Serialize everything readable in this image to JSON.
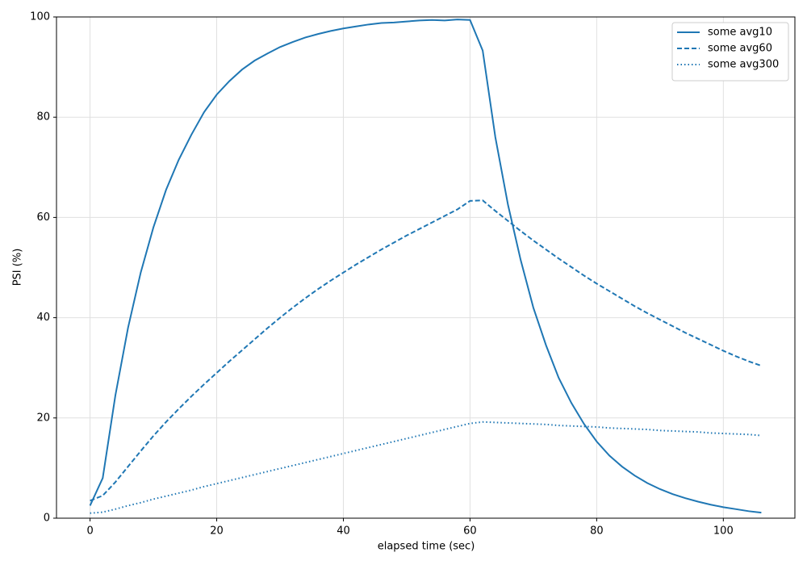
{
  "chart_data": {
    "type": "line",
    "x_label": "elapsed time (sec)",
    "y_label": "PSI (%)",
    "x": [
      0,
      2,
      4,
      6,
      8,
      10,
      12,
      14,
      16,
      18,
      20,
      22,
      24,
      26,
      28,
      30,
      32,
      34,
      36,
      38,
      40,
      42,
      44,
      46,
      48,
      50,
      52,
      54,
      56,
      58,
      60,
      62,
      64,
      66,
      68,
      70,
      72,
      74,
      76,
      78,
      80,
      82,
      84,
      86,
      88,
      90,
      92,
      94,
      96,
      98,
      100,
      102,
      104,
      106
    ],
    "series": [
      {
        "name": "some avg10",
        "color": "#1f77b4",
        "linestyle": "solid",
        "values": [
          2.5,
          8,
          24.5,
          38,
          49,
          58,
          65.5,
          71.5,
          76.5,
          81,
          84.5,
          87.2,
          89.5,
          91.3,
          92.7,
          94,
          95,
          95.9,
          96.6,
          97.2,
          97.7,
          98.1,
          98.5,
          98.8,
          98.9,
          99.1,
          99.3,
          99.4,
          99.3,
          99.5,
          99.4,
          93.3,
          76,
          62.5,
          51.5,
          42,
          34.5,
          28,
          23,
          18.8,
          15.3,
          12.5,
          10.3,
          8.5,
          7,
          5.8,
          4.8,
          4,
          3.3,
          2.7,
          2.2,
          1.8,
          1.4,
          1.1
        ]
      },
      {
        "name": "some avg60",
        "color": "#1f77b4",
        "linestyle": "dashed",
        "values": [
          3.5,
          4.5,
          7.2,
          10.3,
          13.4,
          16.4,
          19.2,
          21.8,
          24.3,
          26.7,
          29,
          31.3,
          33.5,
          35.7,
          37.9,
          40,
          42,
          43.9,
          45.7,
          47.4,
          49,
          50.6,
          52.1,
          53.6,
          55,
          56.4,
          57.7,
          59,
          60.3,
          61.6,
          63.3,
          63.4,
          61.3,
          59.3,
          57.3,
          55.4,
          53.6,
          51.8,
          50.1,
          48.4,
          46.8,
          45.3,
          43.8,
          42.3,
          40.9,
          39.6,
          38.3,
          37,
          35.8,
          34.6,
          33.4,
          32.3,
          31.3,
          30.4
        ]
      },
      {
        "name": "some avg300",
        "color": "#1f77b4",
        "linestyle": "dotted",
        "values": [
          1.0,
          1.2,
          1.8,
          2.5,
          3.1,
          3.8,
          4.4,
          5.0,
          5.6,
          6.3,
          6.9,
          7.5,
          8.1,
          8.7,
          9.3,
          9.9,
          10.5,
          11.1,
          11.7,
          12.3,
          12.9,
          13.5,
          14.1,
          14.7,
          15.3,
          15.9,
          16.5,
          17.1,
          17.7,
          18.3,
          18.9,
          19.2,
          19.1,
          19.0,
          18.9,
          18.8,
          18.7,
          18.5,
          18.4,
          18.3,
          18.2,
          18.0,
          17.9,
          17.8,
          17.7,
          17.5,
          17.4,
          17.3,
          17.2,
          17.0,
          16.9,
          16.8,
          16.7,
          16.5
        ]
      }
    ],
    "xlim": [
      -5.3,
      111.3
    ],
    "xticks": [
      0,
      20,
      40,
      60,
      80,
      100
    ],
    "ylim": [
      0,
      100
    ],
    "yticks": [
      0,
      20,
      40,
      60,
      80,
      100
    ],
    "grid": true,
    "legend": "upper right"
  }
}
